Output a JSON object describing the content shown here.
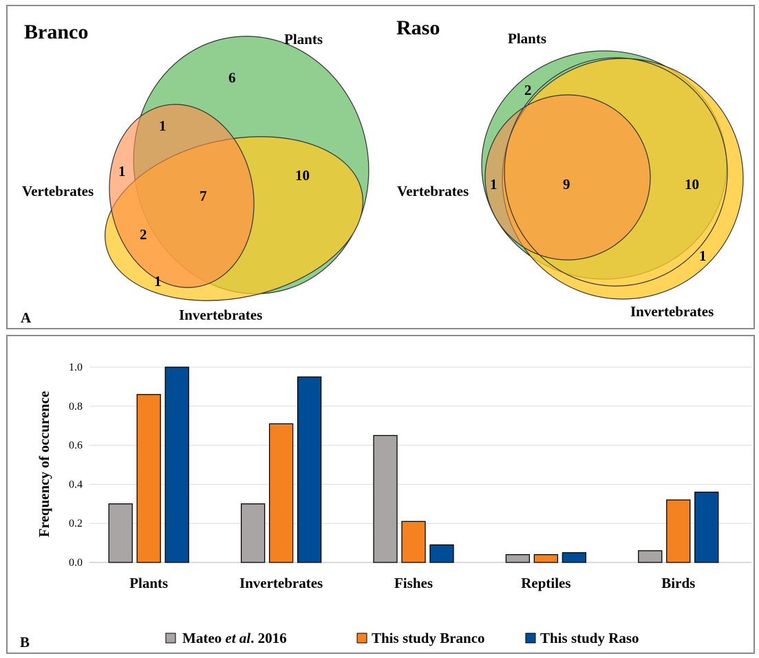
{
  "panel_a": {
    "letter": "A",
    "branco": {
      "title": "Branco",
      "sets": {
        "plants": "Plants",
        "vertebrates": "Vertebrates",
        "invertebrates": "Invertebrates"
      },
      "regions": {
        "plants_only": "6",
        "plants_vertebrates": "1",
        "vertebrates_only": "1",
        "all_three": "7",
        "plants_invertebrates": "10",
        "vertebrates_invertebrates": "2",
        "invertebrates_only": "1"
      }
    },
    "raso": {
      "title": "Raso",
      "sets": {
        "plants": "Plants",
        "vertebrates": "Vertebrates",
        "invertebrates": "Invertebrates"
      },
      "regions": {
        "plants_only": "2",
        "plants_vertebrates": "1",
        "all_three": "9",
        "plants_invertebrates": "10",
        "invertebrates_only": "1"
      }
    },
    "colors": {
      "plants": "#5cb85c",
      "vertebrates": "#ff8c4a",
      "invertebrates": "#ffc82a"
    }
  },
  "panel_b": {
    "letter": "B",
    "legend": [
      {
        "pre": "Mateo ",
        "italic": "et al",
        "post": ". 2016",
        "color": "#aaa5a5"
      },
      {
        "pre": "This study Branco",
        "italic": "",
        "post": "",
        "color": "#f58220"
      },
      {
        "pre": "This study Raso",
        "italic": "",
        "post": "",
        "color": "#004c97"
      }
    ]
  },
  "chart_data": {
    "type": "bar",
    "ylabel": "Frequency of occurence",
    "xlabel": "",
    "ylim": [
      0,
      1.0
    ],
    "yticks": [
      "0.0",
      "0.2",
      "0.4",
      "0.6",
      "0.8",
      "1.0"
    ],
    "grid": true,
    "legend_position": "bottom",
    "categories": [
      "Plants",
      "Invertebrates",
      "Fishes",
      "Reptiles",
      "Birds"
    ],
    "series": [
      {
        "name": "Mateo et al. 2016",
        "color": "#aaa5a5",
        "values": [
          0.3,
          0.3,
          0.65,
          0.04,
          0.06
        ]
      },
      {
        "name": "This study Branco",
        "color": "#f58220",
        "values": [
          0.86,
          0.71,
          0.21,
          0.04,
          0.32
        ]
      },
      {
        "name": "This study Raso",
        "color": "#004c97",
        "values": [
          1.0,
          0.95,
          0.09,
          0.05,
          0.36
        ]
      }
    ]
  }
}
